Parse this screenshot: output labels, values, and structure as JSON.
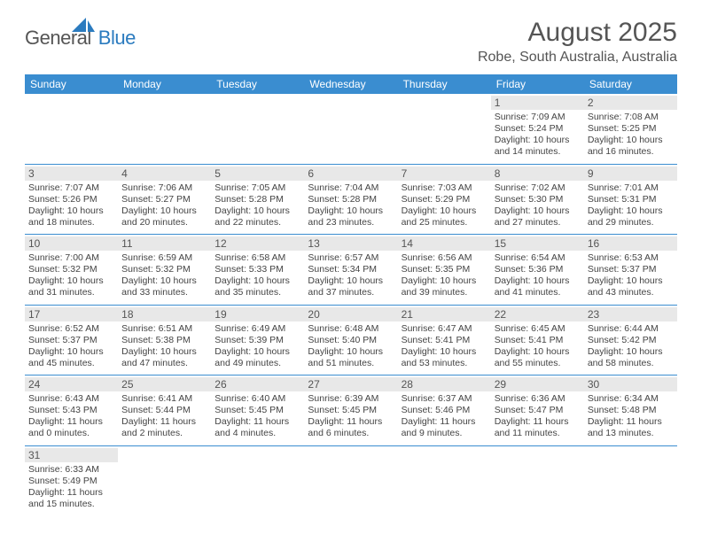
{
  "brand": {
    "part1": "General",
    "part2": "Blue"
  },
  "title": {
    "month": "August 2025",
    "location": "Robe, South Australia, Australia"
  },
  "colors": {
    "header_bg": "#3a8dd0",
    "header_text": "#ffffff",
    "daynum_bg": "#e8e8e8",
    "rule": "#3a8dd0",
    "text": "#444444",
    "logo_blue": "#2b7bbf",
    "logo_gray": "#555555",
    "page_bg": "#ffffff"
  },
  "weekdays": [
    "Sunday",
    "Monday",
    "Tuesday",
    "Wednesday",
    "Thursday",
    "Friday",
    "Saturday"
  ],
  "layout": {
    "first_weekday_index": 5,
    "days_in_month": 31
  },
  "labels": {
    "sunrise": "Sunrise:",
    "sunset": "Sunset:",
    "daylight": "Daylight:"
  },
  "days": {
    "1": {
      "sunrise": "7:09 AM",
      "sunset": "5:24 PM",
      "daylight_h": 10,
      "daylight_m": 14
    },
    "2": {
      "sunrise": "7:08 AM",
      "sunset": "5:25 PM",
      "daylight_h": 10,
      "daylight_m": 16
    },
    "3": {
      "sunrise": "7:07 AM",
      "sunset": "5:26 PM",
      "daylight_h": 10,
      "daylight_m": 18
    },
    "4": {
      "sunrise": "7:06 AM",
      "sunset": "5:27 PM",
      "daylight_h": 10,
      "daylight_m": 20
    },
    "5": {
      "sunrise": "7:05 AM",
      "sunset": "5:28 PM",
      "daylight_h": 10,
      "daylight_m": 22
    },
    "6": {
      "sunrise": "7:04 AM",
      "sunset": "5:28 PM",
      "daylight_h": 10,
      "daylight_m": 23
    },
    "7": {
      "sunrise": "7:03 AM",
      "sunset": "5:29 PM",
      "daylight_h": 10,
      "daylight_m": 25
    },
    "8": {
      "sunrise": "7:02 AM",
      "sunset": "5:30 PM",
      "daylight_h": 10,
      "daylight_m": 27
    },
    "9": {
      "sunrise": "7:01 AM",
      "sunset": "5:31 PM",
      "daylight_h": 10,
      "daylight_m": 29
    },
    "10": {
      "sunrise": "7:00 AM",
      "sunset": "5:32 PM",
      "daylight_h": 10,
      "daylight_m": 31
    },
    "11": {
      "sunrise": "6:59 AM",
      "sunset": "5:32 PM",
      "daylight_h": 10,
      "daylight_m": 33
    },
    "12": {
      "sunrise": "6:58 AM",
      "sunset": "5:33 PM",
      "daylight_h": 10,
      "daylight_m": 35
    },
    "13": {
      "sunrise": "6:57 AM",
      "sunset": "5:34 PM",
      "daylight_h": 10,
      "daylight_m": 37
    },
    "14": {
      "sunrise": "6:56 AM",
      "sunset": "5:35 PM",
      "daylight_h": 10,
      "daylight_m": 39
    },
    "15": {
      "sunrise": "6:54 AM",
      "sunset": "5:36 PM",
      "daylight_h": 10,
      "daylight_m": 41
    },
    "16": {
      "sunrise": "6:53 AM",
      "sunset": "5:37 PM",
      "daylight_h": 10,
      "daylight_m": 43
    },
    "17": {
      "sunrise": "6:52 AM",
      "sunset": "5:37 PM",
      "daylight_h": 10,
      "daylight_m": 45
    },
    "18": {
      "sunrise": "6:51 AM",
      "sunset": "5:38 PM",
      "daylight_h": 10,
      "daylight_m": 47
    },
    "19": {
      "sunrise": "6:49 AM",
      "sunset": "5:39 PM",
      "daylight_h": 10,
      "daylight_m": 49
    },
    "20": {
      "sunrise": "6:48 AM",
      "sunset": "5:40 PM",
      "daylight_h": 10,
      "daylight_m": 51
    },
    "21": {
      "sunrise": "6:47 AM",
      "sunset": "5:41 PM",
      "daylight_h": 10,
      "daylight_m": 53
    },
    "22": {
      "sunrise": "6:45 AM",
      "sunset": "5:41 PM",
      "daylight_h": 10,
      "daylight_m": 55
    },
    "23": {
      "sunrise": "6:44 AM",
      "sunset": "5:42 PM",
      "daylight_h": 10,
      "daylight_m": 58
    },
    "24": {
      "sunrise": "6:43 AM",
      "sunset": "5:43 PM",
      "daylight_h": 11,
      "daylight_m": 0
    },
    "25": {
      "sunrise": "6:41 AM",
      "sunset": "5:44 PM",
      "daylight_h": 11,
      "daylight_m": 2
    },
    "26": {
      "sunrise": "6:40 AM",
      "sunset": "5:45 PM",
      "daylight_h": 11,
      "daylight_m": 4
    },
    "27": {
      "sunrise": "6:39 AM",
      "sunset": "5:45 PM",
      "daylight_h": 11,
      "daylight_m": 6
    },
    "28": {
      "sunrise": "6:37 AM",
      "sunset": "5:46 PM",
      "daylight_h": 11,
      "daylight_m": 9
    },
    "29": {
      "sunrise": "6:36 AM",
      "sunset": "5:47 PM",
      "daylight_h": 11,
      "daylight_m": 11
    },
    "30": {
      "sunrise": "6:34 AM",
      "sunset": "5:48 PM",
      "daylight_h": 11,
      "daylight_m": 13
    },
    "31": {
      "sunrise": "6:33 AM",
      "sunset": "5:49 PM",
      "daylight_h": 11,
      "daylight_m": 15
    }
  }
}
